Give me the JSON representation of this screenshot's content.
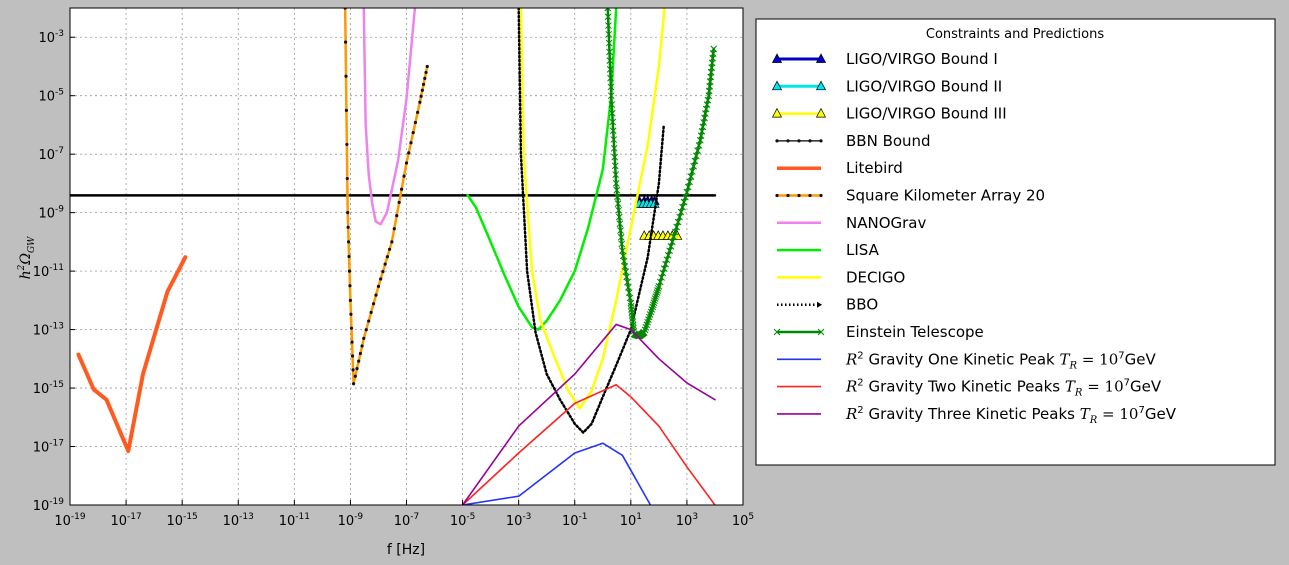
{
  "chart_data": {
    "type": "line",
    "xlabel": "f [Hz]",
    "ylabel": "h²Ω_GW",
    "xscale": "log",
    "yscale": "log",
    "xlim": [
      1e-19,
      100000.0
    ],
    "ylim": [
      1e-19,
      0.01
    ],
    "grid": true,
    "legend_title": "Constraints and Predictions",
    "legend_position": "right, outside plot",
    "x_ticks": [
      {
        "base": "10",
        "exp": "-19",
        "v": 1e-19
      },
      {
        "base": "10",
        "exp": "-17",
        "v": 1e-17
      },
      {
        "base": "10",
        "exp": "-15",
        "v": 1e-15
      },
      {
        "base": "10",
        "exp": "-13",
        "v": 1e-13
      },
      {
        "base": "10",
        "exp": "-11",
        "v": 1e-11
      },
      {
        "base": "10",
        "exp": "-9",
        "v": 1e-09
      },
      {
        "base": "10",
        "exp": "-7",
        "v": 1e-07
      },
      {
        "base": "10",
        "exp": "-5",
        "v": 1e-05
      },
      {
        "base": "10",
        "exp": "-3",
        "v": 0.001
      },
      {
        "base": "10",
        "exp": "-1",
        "v": 0.1
      },
      {
        "base": "10",
        "exp": "1",
        "v": 10.0
      },
      {
        "base": "10",
        "exp": "3",
        "v": 1000.0
      },
      {
        "base": "10",
        "exp": "5",
        "v": 100000.0
      }
    ],
    "y_ticks": [
      {
        "base": "10",
        "exp": "-19",
        "v": 1e-19
      },
      {
        "base": "10",
        "exp": "-17",
        "v": 1e-17
      },
      {
        "base": "10",
        "exp": "-15",
        "v": 1e-15
      },
      {
        "base": "10",
        "exp": "-13",
        "v": 1e-13
      },
      {
        "base": "10",
        "exp": "-11",
        "v": 1e-11
      },
      {
        "base": "10",
        "exp": "-9",
        "v": 1e-09
      },
      {
        "base": "10",
        "exp": "-7",
        "v": 1e-07
      },
      {
        "base": "10",
        "exp": "-5",
        "v": 1e-05
      },
      {
        "base": "10",
        "exp": "-3",
        "v": 0.001
      }
    ],
    "series": [
      {
        "name": "LIGO/VIRGO Bound I",
        "color": "#0000cc",
        "marker": "triangle",
        "markerFill": "#0000cc",
        "width": 3,
        "points": [
          [
            20,
            2.5e-09
          ],
          [
            30,
            2.5e-09
          ],
          [
            40,
            2.5e-09
          ],
          [
            55,
            2.5e-09
          ],
          [
            70,
            2.5e-09
          ]
        ]
      },
      {
        "name": "LIGO/VIRGO Bound II",
        "color": "#00e5ee",
        "marker": "triangle",
        "markerFill": "#00e5ee",
        "width": 3,
        "points": [
          [
            20,
            2e-09
          ],
          [
            28,
            2e-09
          ],
          [
            38,
            2e-09
          ],
          [
            52,
            2e-09
          ],
          [
            70,
            2e-09
          ]
        ]
      },
      {
        "name": "LIGO/VIRGO Bound III",
        "color": "#ffff00",
        "marker": "triangle",
        "markerFill": "#ffff00",
        "width": 2.5,
        "points": [
          [
            30,
            1.6e-10
          ],
          [
            45,
            1.6e-10
          ],
          [
            65,
            1.6e-10
          ],
          [
            95,
            1.6e-10
          ],
          [
            140,
            1.6e-10
          ],
          [
            210,
            1.6e-10
          ],
          [
            300,
            1.6e-10
          ],
          [
            450,
            1.6e-10
          ]
        ]
      },
      {
        "name": "BBN Bound",
        "color": "#000000",
        "marker": "dot",
        "width": 2.5,
        "points": [
          [
            1e-19,
            3.9e-09
          ],
          [
            10000.0,
            3.9e-09
          ]
        ]
      },
      {
        "name": "Litebird",
        "color": "#ff5a1f",
        "marker": "none",
        "width": 4,
        "points": [
          [
            2e-19,
            1.4e-14
          ],
          [
            7e-19,
            9e-16
          ],
          [
            2e-18,
            4e-16
          ],
          [
            1.2e-17,
            7e-18
          ],
          [
            4e-17,
            3e-15
          ],
          [
            3e-16,
            2e-12
          ],
          [
            1.3e-15,
            3e-11
          ]
        ]
      },
      {
        "name": "Square Kilometer Array 20",
        "color": "#ff9900",
        "marker": "dot",
        "markerColor": "#222222",
        "width": 2.5,
        "points": [
          [
            6.5e-10,
            0.01
          ],
          [
            8e-10,
            1e-09
          ],
          [
            1e-09,
            1e-12
          ],
          [
            1.3e-09,
            1.4e-15
          ],
          [
            3e-09,
            5e-14
          ],
          [
            1e-08,
            3e-12
          ],
          [
            3e-08,
            1e-10
          ],
          [
            1e-07,
            5e-08
          ],
          [
            3e-07,
            6e-06
          ],
          [
            5.5e-07,
            0.0001
          ]
        ]
      },
      {
        "name": "NANOGrav",
        "color": "#ee82ee",
        "marker": "none",
        "width": 2.5,
        "points": [
          [
            3e-09,
            0.01
          ],
          [
            3.5e-09,
            1e-06
          ],
          [
            4.5e-09,
            2e-08
          ],
          [
            6e-09,
            2e-09
          ],
          [
            8e-09,
            5e-10
          ],
          [
            1.2e-08,
            4e-10
          ],
          [
            2e-08,
            1e-09
          ],
          [
            5e-08,
            6e-08
          ],
          [
            1e-07,
            8e-06
          ],
          [
            1.6e-07,
            0.001
          ],
          [
            2e-07,
            0.01
          ]
        ]
      },
      {
        "name": "LISA",
        "color": "#00ee00",
        "marker": "none",
        "width": 2.5,
        "points": [
          [
            1.5e-05,
            4e-09
          ],
          [
            3e-05,
            1.5e-09
          ],
          [
            0.0001,
            1e-10
          ],
          [
            0.0003,
            8e-12
          ],
          [
            0.001,
            6e-13
          ],
          [
            0.003,
            1.2e-13
          ],
          [
            0.005,
            1e-13
          ],
          [
            0.01,
            2e-13
          ],
          [
            0.03,
            1e-12
          ],
          [
            0.1,
            1e-11
          ],
          [
            0.3,
            3e-10
          ],
          [
            1,
            3e-08
          ],
          [
            2,
            1e-05
          ],
          [
            3,
            0.01
          ]
        ]
      },
      {
        "name": "DECIGO",
        "color": "#ffff00",
        "marker": "none",
        "width": 2.5,
        "points": [
          [
            0.0012,
            0.01
          ],
          [
            0.0015,
            1e-07
          ],
          [
            0.003,
            1e-11
          ],
          [
            0.006,
            2e-13
          ],
          [
            0.02,
            1e-14
          ],
          [
            0.06,
            8e-16
          ],
          [
            0.15,
            2e-16
          ],
          [
            0.4,
            8e-16
          ],
          [
            1,
            1e-14
          ],
          [
            3,
            1e-12
          ],
          [
            10,
            3e-10
          ],
          [
            40,
            2e-07
          ],
          [
            100,
            0.0001
          ],
          [
            160,
            0.01
          ]
        ]
      },
      {
        "name": "BBO",
        "color": "#000000",
        "marker": "dotted",
        "width": 2.5,
        "points": [
          [
            0.001,
            0.01
          ],
          [
            0.0012,
            1e-07
          ],
          [
            0.002,
            1e-11
          ],
          [
            0.004,
            8e-14
          ],
          [
            0.01,
            3e-15
          ],
          [
            0.03,
            4e-16
          ],
          [
            0.1,
            6e-17
          ],
          [
            0.2,
            3e-17
          ],
          [
            0.4,
            6e-17
          ],
          [
            1,
            5e-16
          ],
          [
            3,
            6e-15
          ],
          [
            10,
            1e-13
          ],
          [
            40,
            3e-11
          ],
          [
            100,
            1e-08
          ],
          [
            150,
            1e-06
          ]
        ]
      },
      {
        "name": "Einstein Telescope",
        "color": "#008800",
        "marker": "x",
        "width": 2.5,
        "points": [
          [
            1.5,
            0.01
          ],
          [
            2,
            1e-05
          ],
          [
            3,
            1e-08
          ],
          [
            5,
            5e-11
          ],
          [
            10,
            8e-13
          ],
          [
            13,
            7e-14
          ],
          [
            20,
            6e-14
          ],
          [
            30,
            8e-14
          ],
          [
            60,
            6e-13
          ],
          [
            100,
            3e-12
          ],
          [
            300,
            1e-10
          ],
          [
            1000,
            5e-09
          ],
          [
            3000,
            3e-07
          ],
          [
            6000,
            1e-05
          ],
          [
            9000,
            0.0004
          ]
        ]
      },
      {
        "name": "R² Gravity One Kinetic Peak T_R=10⁷GeV",
        "color": "#2233ff",
        "marker": "none",
        "width": 1.6,
        "points": [
          [
            1e-05,
            1e-19
          ],
          [
            0.001,
            2e-19
          ],
          [
            0.1,
            6e-18
          ],
          [
            1,
            1.3e-17
          ],
          [
            5,
            5e-18
          ],
          [
            50,
            1e-19
          ]
        ]
      },
      {
        "name": "R² Gravity Two Kinetic Peaks T_R=10⁷GeV",
        "color": "#ff2222",
        "marker": "none",
        "width": 1.6,
        "points": [
          [
            1e-05,
            1e-19
          ],
          [
            0.001,
            6e-18
          ],
          [
            0.1,
            3e-16
          ],
          [
            3,
            1.3e-15
          ],
          [
            10,
            5e-16
          ],
          [
            100,
            5e-17
          ],
          [
            1000,
            2e-18
          ],
          [
            10000.0,
            1e-19
          ]
        ]
      },
      {
        "name": "R² Gravity Three Kinetic Peaks T_R=10⁷GeV",
        "color": "#990099",
        "marker": "none",
        "width": 1.6,
        "points": [
          [
            1e-05,
            1e-19
          ],
          [
            0.001,
            5e-17
          ],
          [
            0.1,
            3e-15
          ],
          [
            3,
            1.5e-13
          ],
          [
            10,
            1e-13
          ],
          [
            100,
            1e-14
          ],
          [
            1000,
            1.5e-15
          ],
          [
            10000.0,
            4e-16
          ]
        ]
      }
    ]
  },
  "legend": {
    "items": [
      {
        "label": "LIGO/VIRGO Bound I"
      },
      {
        "label": "LIGO/VIRGO Bound II"
      },
      {
        "label": "LIGO/VIRGO Bound III"
      },
      {
        "label": "BBN Bound"
      },
      {
        "label": "Litebird"
      },
      {
        "label": "Square Kilometer Array 20"
      },
      {
        "label": "NANOGrav"
      },
      {
        "label": "LISA"
      },
      {
        "label": "DECIGO"
      },
      {
        "label": "BBO"
      },
      {
        "label": "Einstein Telescope"
      },
      {
        "label": "R",
        "sup": "2",
        "rest": " Gravity One Kinetic Peak ",
        "tr": "T",
        "trsub": "R",
        "eq": " = 10",
        "eqsup": "7",
        "unit": "GeV"
      },
      {
        "label": "R",
        "sup": "2",
        "rest": " Gravity Two Kinetic Peaks ",
        "tr": "T",
        "trsub": "R",
        "eq": " = 10",
        "eqsup": "7",
        "unit": "GeV"
      },
      {
        "label": "R",
        "sup": "2",
        "rest": " Gravity Three Kinetic Peaks ",
        "tr": "T",
        "trsub": "R",
        "eq": " = 10",
        "eqsup": "7",
        "unit": "GeV"
      }
    ]
  }
}
